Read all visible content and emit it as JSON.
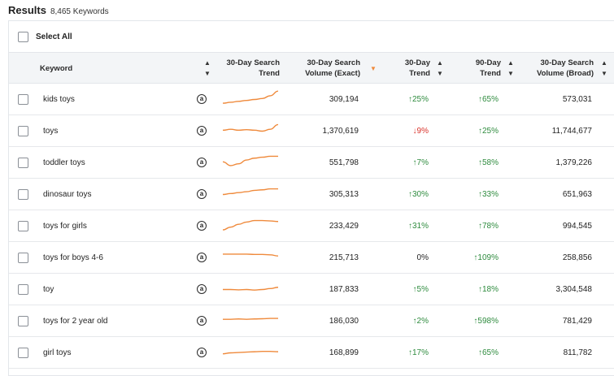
{
  "results": {
    "title": "Results",
    "count": "8,465 Keywords"
  },
  "select_all_label": "Select All",
  "columns": {
    "keyword": "Keyword",
    "trend_line1": "30-Day Search",
    "trend_line2": "Trend",
    "exact_line1": "30-Day Search",
    "exact_line2": "Volume (Exact)",
    "t30_line1": "30-Day",
    "t30_line2": "Trend",
    "t90_line1": "90-Day",
    "t90_line2": "Trend",
    "broad_line1": "30-Day Search",
    "broad_line2": "Volume (Broad)"
  },
  "icons": {
    "amazon": "amazon-icon",
    "sort": "sort-icon",
    "sort_active": "sort-desc-icon"
  },
  "colors": {
    "accent": "#ef8a3c",
    "up": "#2e8b3e",
    "down": "#d9322a"
  },
  "rows": [
    {
      "keyword": "kids toys",
      "exact": "309,194",
      "t30": "25%",
      "t30_dir": "up",
      "t90": "65%",
      "t90_dir": "up",
      "broad": "573,031",
      "spark": [
        0.3,
        0.35,
        0.4,
        0.45,
        0.5,
        0.55,
        0.7,
        0.95
      ]
    },
    {
      "keyword": "toys",
      "exact": "1,370,619",
      "t30": "9%",
      "t30_dir": "down",
      "t90": "25%",
      "t90_dir": "up",
      "broad": "11,744,677",
      "spark": [
        0.55,
        0.6,
        0.55,
        0.58,
        0.55,
        0.5,
        0.6,
        0.85
      ]
    },
    {
      "keyword": "toddler toys",
      "exact": "551,798",
      "t30": "7%",
      "t30_dir": "up",
      "t90": "58%",
      "t90_dir": "up",
      "broad": "1,379,226",
      "spark": [
        0.55,
        0.35,
        0.45,
        0.65,
        0.75,
        0.8,
        0.85,
        0.85
      ]
    },
    {
      "keyword": "dinosaur toys",
      "exact": "305,313",
      "t30": "30%",
      "t30_dir": "up",
      "t90": "33%",
      "t90_dir": "up",
      "broad": "651,963",
      "spark": [
        0.5,
        0.55,
        0.6,
        0.65,
        0.72,
        0.75,
        0.8,
        0.8
      ]
    },
    {
      "keyword": "toys for girls",
      "exact": "233,429",
      "t30": "31%",
      "t30_dir": "up",
      "t90": "78%",
      "t90_dir": "up",
      "broad": "994,545",
      "spark": [
        0.3,
        0.45,
        0.6,
        0.72,
        0.8,
        0.8,
        0.78,
        0.75
      ]
    },
    {
      "keyword": "toys for boys 4-6",
      "exact": "215,713",
      "t30": "0%",
      "t30_dir": "none",
      "t90": "109%",
      "t90_dir": "up",
      "broad": "258,856",
      "spark": [
        0.7,
        0.7,
        0.7,
        0.7,
        0.68,
        0.68,
        0.66,
        0.6
      ]
    },
    {
      "keyword": "toy",
      "exact": "187,833",
      "t30": "5%",
      "t30_dir": "up",
      "t90": "18%",
      "t90_dir": "up",
      "broad": "3,304,548",
      "spark": [
        0.5,
        0.5,
        0.48,
        0.5,
        0.47,
        0.5,
        0.55,
        0.62
      ]
    },
    {
      "keyword": "toys for 2 year old",
      "exact": "186,030",
      "t30": "2%",
      "t30_dir": "up",
      "t90": "598%",
      "t90_dir": "up",
      "broad": "781,429",
      "spark": [
        0.6,
        0.6,
        0.62,
        0.6,
        0.62,
        0.63,
        0.65,
        0.65
      ]
    },
    {
      "keyword": "girl toys",
      "exact": "168,899",
      "t30": "17%",
      "t30_dir": "up",
      "t90": "65%",
      "t90_dir": "up",
      "broad": "811,782",
      "spark": [
        0.45,
        0.5,
        0.52,
        0.54,
        0.56,
        0.58,
        0.58,
        0.56
      ]
    }
  ]
}
